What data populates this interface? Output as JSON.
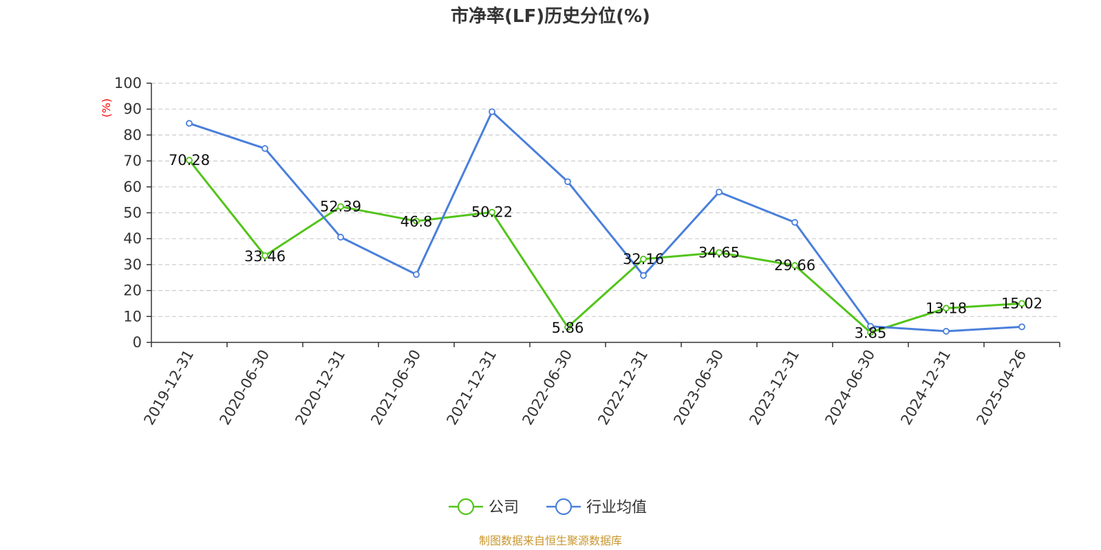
{
  "chart_data": {
    "type": "line",
    "title": "市净率(LF)历史分位(%)",
    "ylabel": "(%)",
    "ylabel_color": "#ff0000",
    "ylim": [
      0,
      100
    ],
    "yticks": [
      0,
      10,
      20,
      30,
      40,
      50,
      60,
      70,
      80,
      90,
      100
    ],
    "grid": true,
    "legend_position": "bottom-center",
    "categories": [
      "2019-12-31",
      "2020-06-30",
      "2020-12-31",
      "2021-06-30",
      "2021-12-31",
      "2022-06-30",
      "2022-12-31",
      "2023-06-30",
      "2023-12-31",
      "2024-06-30",
      "2024-12-31",
      "2025-04-26"
    ],
    "series": [
      {
        "name": "公司",
        "color": "#52c41a",
        "show_labels": true,
        "values": [
          70.28,
          33.46,
          52.39,
          46.8,
          50.22,
          5.86,
          32.16,
          34.65,
          29.66,
          3.85,
          13.18,
          15.02
        ]
      },
      {
        "name": "行业均值",
        "color": "#4a7fdb",
        "show_labels": false,
        "values": [
          84.5,
          74.8,
          40.6,
          26.2,
          89.0,
          62.0,
          25.8,
          58.0,
          46.3,
          6.2,
          4.3,
          6.0
        ]
      }
    ]
  },
  "source": {
    "text": "制图数据来自恒生聚源数据库",
    "color": "#c8962e"
  }
}
